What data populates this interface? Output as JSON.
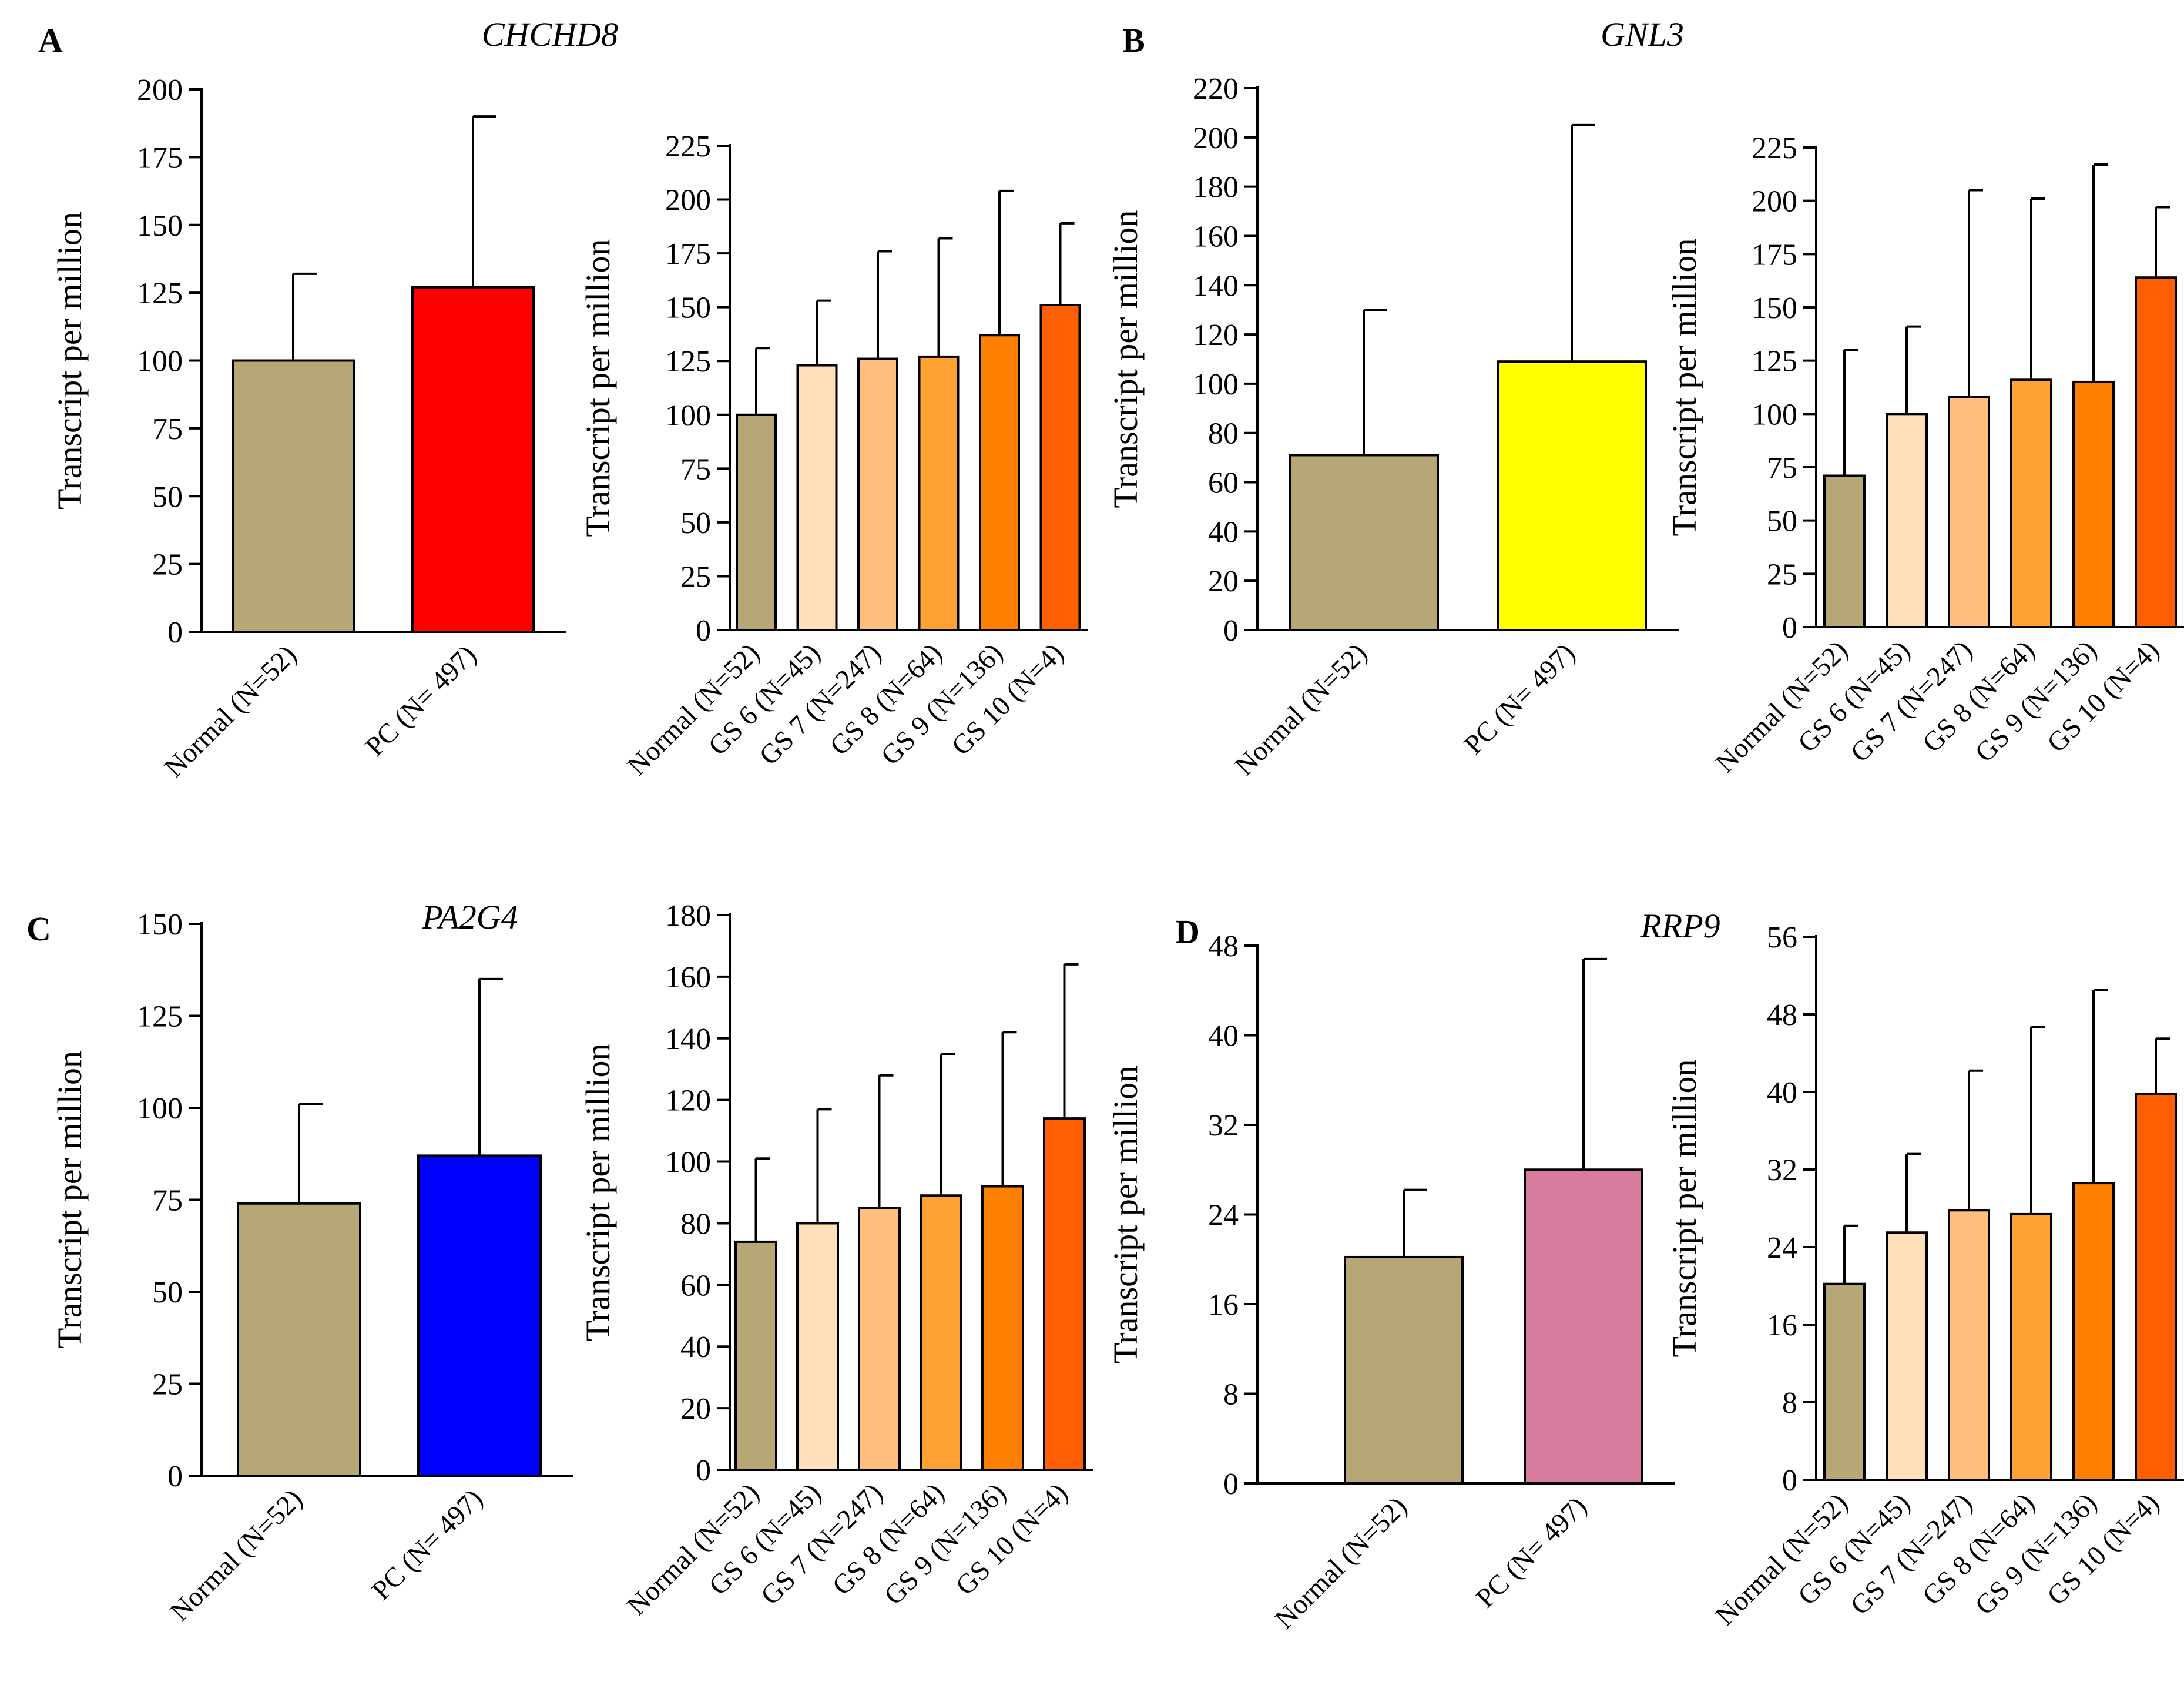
{
  "panels": [
    {
      "letter": "A",
      "gene": "CHCHD8"
    },
    {
      "letter": "B",
      "gene": "GNL3"
    },
    {
      "letter": "C",
      "gene": "PA2G4"
    },
    {
      "letter": "D",
      "gene": "RRP9"
    }
  ],
  "chart_data": [
    {
      "type": "bar",
      "panel": "A",
      "gene": "CHCHD8",
      "categories": [
        "Normal (N=52)",
        "PC (N= 497)"
      ],
      "values": [
        100,
        127
      ],
      "errors_upper": [
        132,
        190
      ],
      "colors": [
        "#b5a776",
        "#ff0000"
      ],
      "ylabel": "Transcript per million",
      "ylim": [
        0,
        200
      ],
      "yticks": [
        "0",
        "25",
        "50",
        "75",
        "100",
        "125",
        "150",
        "175",
        "200"
      ]
    },
    {
      "type": "bar",
      "panel": "A",
      "gene": "CHCHD8",
      "categories": [
        "Normal (N=52)",
        "GS 6 (N=45)",
        "GS 7 (N=247)",
        "GS 8 (N=64)",
        "GS 9 (N=136)",
        "GS 10 (N=4)"
      ],
      "values": [
        100,
        123,
        126,
        127,
        137,
        151
      ],
      "errors_upper": [
        131,
        153,
        176,
        182,
        204,
        189
      ],
      "colors": [
        "#b5a776",
        "#ffdfba",
        "#ffbf7f",
        "#ffa133",
        "#ff8000",
        "#ff5f00"
      ],
      "ylabel": "Transcript per million",
      "ylim": [
        0,
        225
      ],
      "yticks": [
        "0",
        "25",
        "50",
        "75",
        "100",
        "125",
        "150",
        "175",
        "200",
        "225"
      ]
    },
    {
      "type": "bar",
      "panel": "B",
      "gene": "GNL3",
      "categories": [
        "Normal (N=52)",
        "PC (N= 497)"
      ],
      "values": [
        71,
        109
      ],
      "errors_upper": [
        130,
        205
      ],
      "colors": [
        "#b5a776",
        "#ffff00"
      ],
      "ylabel": "Transcript per million",
      "ylim": [
        0,
        220
      ],
      "yticks": [
        "0",
        "20",
        "40",
        "60",
        "80",
        "100",
        "120",
        "140",
        "160",
        "180",
        "200",
        "220"
      ]
    },
    {
      "type": "bar",
      "panel": "B",
      "gene": "GNL3",
      "categories": [
        "Normal (N=52)",
        "GS 6 (N=45)",
        "GS 7 (N=247)",
        "GS 8 (N=64)",
        "GS 9 (N=136)",
        "GS 10 (N=4)"
      ],
      "values": [
        71,
        100,
        108,
        116,
        115,
        164
      ],
      "errors_upper": [
        130,
        141,
        205,
        201,
        217,
        197
      ],
      "colors": [
        "#b5a776",
        "#ffdfba",
        "#ffbf7f",
        "#ffa133",
        "#ff8000",
        "#ff5f00"
      ],
      "ylabel": "Transcript per million",
      "ylim": [
        0,
        225
      ],
      "yticks": [
        "0",
        "25",
        "50",
        "75",
        "100",
        "125",
        "150",
        "175",
        "200",
        "225"
      ]
    },
    {
      "type": "bar",
      "panel": "C",
      "gene": "PA2G4",
      "categories": [
        "Normal (N=52)",
        "PC (N= 497)"
      ],
      "values": [
        74,
        87
      ],
      "errors_upper": [
        101,
        135
      ],
      "colors": [
        "#b5a776",
        "#0000ff"
      ],
      "ylabel": "Transcript per million",
      "ylim": [
        0,
        150
      ],
      "yticks": [
        "0",
        "25",
        "50",
        "75",
        "100",
        "125",
        "150"
      ]
    },
    {
      "type": "bar",
      "panel": "C",
      "gene": "PA2G4",
      "categories": [
        "Normal (N=52)",
        "GS 6 (N=45)",
        "GS 7 (N=247)",
        "GS 8 (N=64)",
        "GS 9 (N=136)",
        "GS 10 (N=4)"
      ],
      "values": [
        74,
        80,
        85,
        89,
        92,
        114
      ],
      "errors_upper": [
        101,
        117,
        128,
        135,
        142,
        164
      ],
      "colors": [
        "#b5a776",
        "#ffdfba",
        "#ffbf7f",
        "#ffa133",
        "#ff8000",
        "#ff5f00"
      ],
      "ylabel": "Transcript per million",
      "ylim": [
        0,
        180
      ],
      "yticks": [
        "0",
        "20",
        "40",
        "60",
        "80",
        "100",
        "120",
        "140",
        "160",
        "180"
      ]
    },
    {
      "type": "bar",
      "panel": "D",
      "gene": "RRP9",
      "categories": [
        "Normal (N=52)",
        "PC (N= 497)"
      ],
      "values": [
        20.2,
        28
      ],
      "errors_upper": [
        26.2,
        46.8
      ],
      "colors": [
        "#b5a776",
        "#d77c9e"
      ],
      "ylabel": "Transcript per million",
      "ylim": [
        0,
        48
      ],
      "yticks": [
        "0",
        "8",
        "16",
        "24",
        "32",
        "40",
        "48"
      ]
    },
    {
      "type": "bar",
      "panel": "D",
      "gene": "RRP9",
      "categories": [
        "Normal (N=52)",
        "GS 6 (N=45)",
        "GS 7 (N=247)",
        "GS 8 (N=64)",
        "GS 9 (N=136)",
        "GS 10 (N=4)"
      ],
      "values": [
        20.2,
        25.5,
        27.8,
        27.4,
        30.6,
        39.8
      ],
      "errors_upper": [
        26.2,
        33.6,
        42.2,
        46.7,
        50.5,
        45.5
      ],
      "colors": [
        "#b5a776",
        "#ffdfba",
        "#ffbf7f",
        "#ffa133",
        "#ff8000",
        "#ff5f00"
      ],
      "ylabel": "Transcript per million",
      "ylim": [
        0,
        56
      ],
      "yticks": [
        "0",
        "8",
        "16",
        "24",
        "32",
        "40",
        "48",
        "56"
      ]
    }
  ]
}
